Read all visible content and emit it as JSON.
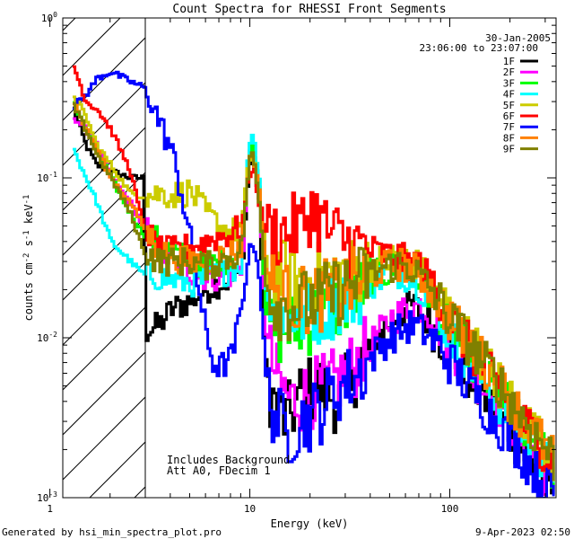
{
  "chart_data": {
    "type": "line",
    "title": "Count Spectra for RHESSI Front Segments",
    "xlabel": "Energy (keV)",
    "ylabel": "counts cm-2 s-1 keV-1",
    "xscale": "log",
    "yscale": "log",
    "xlim": [
      1.16,
      340
    ],
    "ylim": [
      0.001,
      1
    ],
    "x_ticks": [
      {
        "value": 1,
        "label": "1"
      },
      {
        "value": 10,
        "label": "10"
      },
      {
        "value": 100,
        "label": "100"
      }
    ],
    "y_ticks": [
      {
        "value": 0.001,
        "base": "10",
        "exp": "-3"
      },
      {
        "value": 0.01,
        "base": "10",
        "exp": "-2"
      },
      {
        "value": 0.1,
        "base": "10",
        "exp": "-1"
      },
      {
        "value": 1,
        "base": "10",
        "exp": "0"
      }
    ],
    "header": {
      "date": "30-Jan-2005",
      "time_range": "23:06:00 to 23:07:00"
    },
    "hatched_region": {
      "x_min": 1.16,
      "x_max": 3
    },
    "annotations": [
      "Includes Background",
      "Att A0, FDecim 1"
    ],
    "series": [
      {
        "name": "1F",
        "color": "#000000",
        "points": [
          [
            1.3,
            0.27
          ],
          [
            1.5,
            0.16
          ],
          [
            1.7,
            0.12
          ],
          [
            2,
            0.11
          ],
          [
            2.5,
            0.1
          ],
          [
            2.9,
            0.1
          ],
          [
            3,
            0.011
          ],
          [
            3.5,
            0.012
          ],
          [
            4,
            0.015
          ],
          [
            5,
            0.017
          ],
          [
            6,
            0.02
          ],
          [
            7,
            0.022
          ],
          [
            8,
            0.023
          ],
          [
            9,
            0.025
          ],
          [
            9.8,
            0.12
          ],
          [
            10.3,
            0.13
          ],
          [
            11,
            0.07
          ],
          [
            12,
            0.0055
          ],
          [
            13,
            0.004
          ],
          [
            15,
            0.003
          ],
          [
            18,
            0.0045
          ],
          [
            22,
            0.005
          ],
          [
            28,
            0.004
          ],
          [
            35,
            0.007
          ],
          [
            45,
            0.011
          ],
          [
            55,
            0.014
          ],
          [
            65,
            0.016
          ],
          [
            80,
            0.012
          ],
          [
            100,
            0.008
          ],
          [
            130,
            0.005
          ],
          [
            170,
            0.0035
          ],
          [
            220,
            0.0021
          ],
          [
            280,
            0.0014
          ],
          [
            330,
            0.0011
          ]
        ]
      },
      {
        "name": "2F",
        "color": "#ff00ff",
        "points": [
          [
            1.3,
            0.24
          ],
          [
            1.5,
            0.2
          ],
          [
            1.7,
            0.16
          ],
          [
            2,
            0.1
          ],
          [
            2.5,
            0.07
          ],
          [
            2.9,
            0.05
          ],
          [
            3.5,
            0.035
          ],
          [
            4,
            0.03
          ],
          [
            5,
            0.026
          ],
          [
            6,
            0.024
          ],
          [
            7,
            0.024
          ],
          [
            8,
            0.025
          ],
          [
            9,
            0.027
          ],
          [
            9.8,
            0.14
          ],
          [
            10.3,
            0.15
          ],
          [
            11,
            0.08
          ],
          [
            12,
            0.009
          ],
          [
            14,
            0.005
          ],
          [
            16,
            0.004
          ],
          [
            20,
            0.0045
          ],
          [
            25,
            0.005
          ],
          [
            30,
            0.006
          ],
          [
            40,
            0.009
          ],
          [
            50,
            0.013
          ],
          [
            60,
            0.015
          ],
          [
            70,
            0.016
          ],
          [
            85,
            0.013
          ],
          [
            100,
            0.009
          ],
          [
            130,
            0.006
          ],
          [
            170,
            0.004
          ],
          [
            220,
            0.0024
          ],
          [
            280,
            0.0016
          ],
          [
            330,
            0.0012
          ]
        ]
      },
      {
        "name": "3F",
        "color": "#00ff00",
        "points": [
          [
            1.3,
            0.3
          ],
          [
            1.5,
            0.2
          ],
          [
            1.7,
            0.15
          ],
          [
            2,
            0.1
          ],
          [
            2.5,
            0.06
          ],
          [
            2.9,
            0.045
          ],
          [
            3.5,
            0.04
          ],
          [
            4,
            0.035
          ],
          [
            5,
            0.03
          ],
          [
            6,
            0.029
          ],
          [
            7,
            0.03
          ],
          [
            8,
            0.032
          ],
          [
            9,
            0.035
          ],
          [
            9.8,
            0.15
          ],
          [
            10.3,
            0.16
          ],
          [
            11,
            0.09
          ],
          [
            12,
            0.012
          ],
          [
            14,
            0.011
          ],
          [
            18,
            0.012
          ],
          [
            22,
            0.014
          ],
          [
            28,
            0.016
          ],
          [
            35,
            0.02
          ],
          [
            45,
            0.025
          ],
          [
            55,
            0.028
          ],
          [
            65,
            0.026
          ],
          [
            80,
            0.018
          ],
          [
            100,
            0.011
          ],
          [
            130,
            0.007
          ],
          [
            170,
            0.0045
          ],
          [
            220,
            0.003
          ],
          [
            280,
            0.002
          ],
          [
            330,
            0.0015
          ]
        ]
      },
      {
        "name": "4F",
        "color": "#00ffff",
        "points": [
          [
            1.3,
            0.15
          ],
          [
            1.5,
            0.1
          ],
          [
            1.7,
            0.07
          ],
          [
            2,
            0.04
          ],
          [
            2.5,
            0.03
          ],
          [
            2.9,
            0.025
          ],
          [
            3.5,
            0.024
          ],
          [
            4,
            0.023
          ],
          [
            5,
            0.022
          ],
          [
            6,
            0.023
          ],
          [
            7,
            0.025
          ],
          [
            8,
            0.027
          ],
          [
            9,
            0.03
          ],
          [
            9.8,
            0.17
          ],
          [
            10.3,
            0.19
          ],
          [
            11,
            0.1
          ],
          [
            12,
            0.018
          ],
          [
            14,
            0.014
          ],
          [
            18,
            0.014
          ],
          [
            22,
            0.015
          ],
          [
            28,
            0.017
          ],
          [
            35,
            0.02
          ],
          [
            45,
            0.024
          ],
          [
            55,
            0.026
          ],
          [
            65,
            0.024
          ],
          [
            80,
            0.017
          ],
          [
            100,
            0.01
          ],
          [
            130,
            0.0065
          ],
          [
            170,
            0.0042
          ],
          [
            220,
            0.0028
          ],
          [
            280,
            0.0019
          ],
          [
            330,
            0.0014
          ]
        ]
      },
      {
        "name": "5F",
        "color": "#cccc00",
        "points": [
          [
            1.3,
            0.33
          ],
          [
            1.5,
            0.24
          ],
          [
            1.7,
            0.16
          ],
          [
            2,
            0.12
          ],
          [
            2.5,
            0.08
          ],
          [
            2.9,
            0.077
          ],
          [
            3.5,
            0.08
          ],
          [
            4,
            0.078
          ],
          [
            5,
            0.082
          ],
          [
            6,
            0.06
          ],
          [
            7,
            0.05
          ],
          [
            8,
            0.045
          ],
          [
            9,
            0.05
          ],
          [
            9.8,
            0.13
          ],
          [
            10.3,
            0.14
          ],
          [
            11,
            0.08
          ],
          [
            12,
            0.03
          ],
          [
            14,
            0.025
          ],
          [
            18,
            0.023
          ],
          [
            22,
            0.024
          ],
          [
            28,
            0.025
          ],
          [
            35,
            0.027
          ],
          [
            45,
            0.03
          ],
          [
            55,
            0.032
          ],
          [
            65,
            0.03
          ],
          [
            80,
            0.022
          ],
          [
            100,
            0.014
          ],
          [
            130,
            0.009
          ],
          [
            170,
            0.0055
          ],
          [
            220,
            0.0035
          ],
          [
            280,
            0.0023
          ],
          [
            330,
            0.0017
          ]
        ]
      },
      {
        "name": "6F",
        "color": "#ff0000",
        "points": [
          [
            1.3,
            0.5
          ],
          [
            1.5,
            0.3
          ],
          [
            1.7,
            0.27
          ],
          [
            2,
            0.2
          ],
          [
            2.5,
            0.11
          ],
          [
            2.9,
            0.05
          ],
          [
            3.5,
            0.035
          ],
          [
            4,
            0.035
          ],
          [
            5,
            0.037
          ],
          [
            6,
            0.04
          ],
          [
            7,
            0.043
          ],
          [
            8,
            0.045
          ],
          [
            9,
            0.05
          ],
          [
            9.8,
            0.1
          ],
          [
            10.3,
            0.12
          ],
          [
            11,
            0.07
          ],
          [
            12,
            0.045
          ],
          [
            14,
            0.045
          ],
          [
            18,
            0.05
          ],
          [
            20,
            0.065
          ],
          [
            25,
            0.045
          ],
          [
            30,
            0.04
          ],
          [
            40,
            0.035
          ],
          [
            50,
            0.032
          ],
          [
            60,
            0.03
          ],
          [
            70,
            0.028
          ],
          [
            85,
            0.02
          ],
          [
            100,
            0.013
          ],
          [
            130,
            0.008
          ],
          [
            170,
            0.005
          ],
          [
            220,
            0.0032
          ],
          [
            280,
            0.0022
          ],
          [
            330,
            0.0016
          ]
        ]
      },
      {
        "name": "7F",
        "color": "#0000ff",
        "points": [
          [
            1.3,
            0.28
          ],
          [
            1.5,
            0.33
          ],
          [
            1.7,
            0.42
          ],
          [
            2,
            0.46
          ],
          [
            2.5,
            0.4
          ],
          [
            2.9,
            0.37
          ],
          [
            3.2,
            0.3
          ],
          [
            3.5,
            0.22
          ],
          [
            4,
            0.15
          ],
          [
            4.5,
            0.08
          ],
          [
            5,
            0.04
          ],
          [
            5.5,
            0.02
          ],
          [
            6,
            0.01
          ],
          [
            6.5,
            0.007
          ],
          [
            7,
            0.0065
          ],
          [
            8,
            0.0075
          ],
          [
            9,
            0.015
          ],
          [
            9.8,
            0.035
          ],
          [
            10.3,
            0.04
          ],
          [
            11,
            0.025
          ],
          [
            12,
            0.005
          ],
          [
            13,
            0.0035
          ],
          [
            15,
            0.0025
          ],
          [
            18,
            0.003
          ],
          [
            22,
            0.0035
          ],
          [
            28,
            0.005
          ],
          [
            35,
            0.006
          ],
          [
            45,
            0.009
          ],
          [
            55,
            0.011
          ],
          [
            65,
            0.012
          ],
          [
            80,
            0.01
          ],
          [
            100,
            0.007
          ],
          [
            130,
            0.0045
          ],
          [
            170,
            0.003
          ],
          [
            220,
            0.002
          ],
          [
            280,
            0.0013
          ],
          [
            330,
            0.001
          ]
        ]
      },
      {
        "name": "8F",
        "color": "#ff8000",
        "points": [
          [
            1.3,
            0.3
          ],
          [
            1.5,
            0.2
          ],
          [
            1.7,
            0.15
          ],
          [
            2,
            0.1
          ],
          [
            2.5,
            0.07
          ],
          [
            2.9,
            0.05
          ],
          [
            3.5,
            0.035
          ],
          [
            4,
            0.032
          ],
          [
            5,
            0.03
          ],
          [
            6,
            0.03
          ],
          [
            7,
            0.032
          ],
          [
            8,
            0.034
          ],
          [
            9,
            0.038
          ],
          [
            9.8,
            0.13
          ],
          [
            10.3,
            0.14
          ],
          [
            11,
            0.08
          ],
          [
            12,
            0.025
          ],
          [
            14,
            0.018
          ],
          [
            18,
            0.017
          ],
          [
            22,
            0.018
          ],
          [
            28,
            0.02
          ],
          [
            35,
            0.023
          ],
          [
            45,
            0.027
          ],
          [
            55,
            0.029
          ],
          [
            65,
            0.027
          ],
          [
            80,
            0.02
          ],
          [
            100,
            0.013
          ],
          [
            130,
            0.0085
          ],
          [
            170,
            0.0055
          ],
          [
            220,
            0.0034
          ],
          [
            280,
            0.0023
          ],
          [
            330,
            0.0017
          ]
        ]
      },
      {
        "name": "9F",
        "color": "#808000",
        "points": [
          [
            1.3,
            0.28
          ],
          [
            1.5,
            0.2
          ],
          [
            1.7,
            0.14
          ],
          [
            2,
            0.1
          ],
          [
            2.5,
            0.06
          ],
          [
            2.9,
            0.035
          ],
          [
            3.5,
            0.03
          ],
          [
            4,
            0.03
          ],
          [
            5,
            0.03
          ],
          [
            6,
            0.028
          ],
          [
            7,
            0.03
          ],
          [
            8,
            0.032
          ],
          [
            9,
            0.035
          ],
          [
            9.8,
            0.13
          ],
          [
            10.3,
            0.14
          ],
          [
            11,
            0.07
          ],
          [
            12,
            0.02
          ],
          [
            14,
            0.016
          ],
          [
            18,
            0.016
          ],
          [
            22,
            0.017
          ],
          [
            28,
            0.02
          ],
          [
            35,
            0.023
          ],
          [
            45,
            0.027
          ],
          [
            55,
            0.029
          ],
          [
            65,
            0.027
          ],
          [
            80,
            0.02
          ],
          [
            100,
            0.013
          ],
          [
            130,
            0.0085
          ],
          [
            170,
            0.0055
          ],
          [
            220,
            0.0034
          ],
          [
            280,
            0.0023
          ],
          [
            330,
            0.0017
          ]
        ]
      }
    ]
  },
  "footer": {
    "generated_by": "Generated by hsi_min_spectra_plot.pro",
    "timestamp": "9-Apr-2023 02:50"
  }
}
